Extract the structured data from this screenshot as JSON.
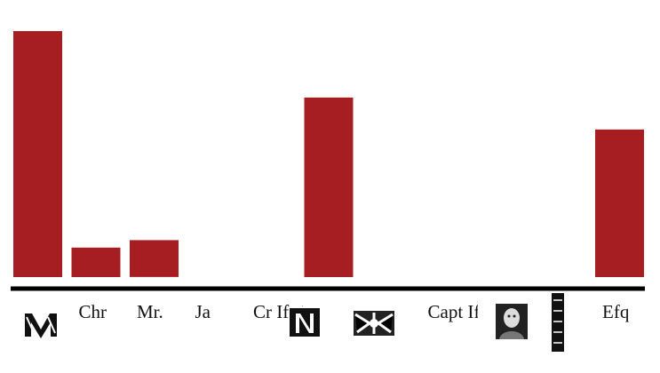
{
  "chart_data": {
    "type": "bar",
    "categories": [
      "",
      "Chr",
      "Mr.",
      "Ja",
      "Cr Ifa M",
      "",
      "",
      "Capt Ifaa",
      "",
      "",
      "Efq"
    ],
    "values": [
      100,
      12,
      15,
      0,
      0,
      73,
      0,
      0,
      0,
      0,
      60
    ],
    "ylim": [
      0,
      100
    ],
    "title": "",
    "xlabel": "",
    "ylabel": ""
  },
  "colors": {
    "bar": "#a71e22",
    "axis": "#000000"
  },
  "tick_images": [
    "woodcut-m-icon",
    "woodcut-n-icon",
    "woodcut-ornament-icon",
    "portrait-icon",
    "woodcut-bar-icon"
  ]
}
